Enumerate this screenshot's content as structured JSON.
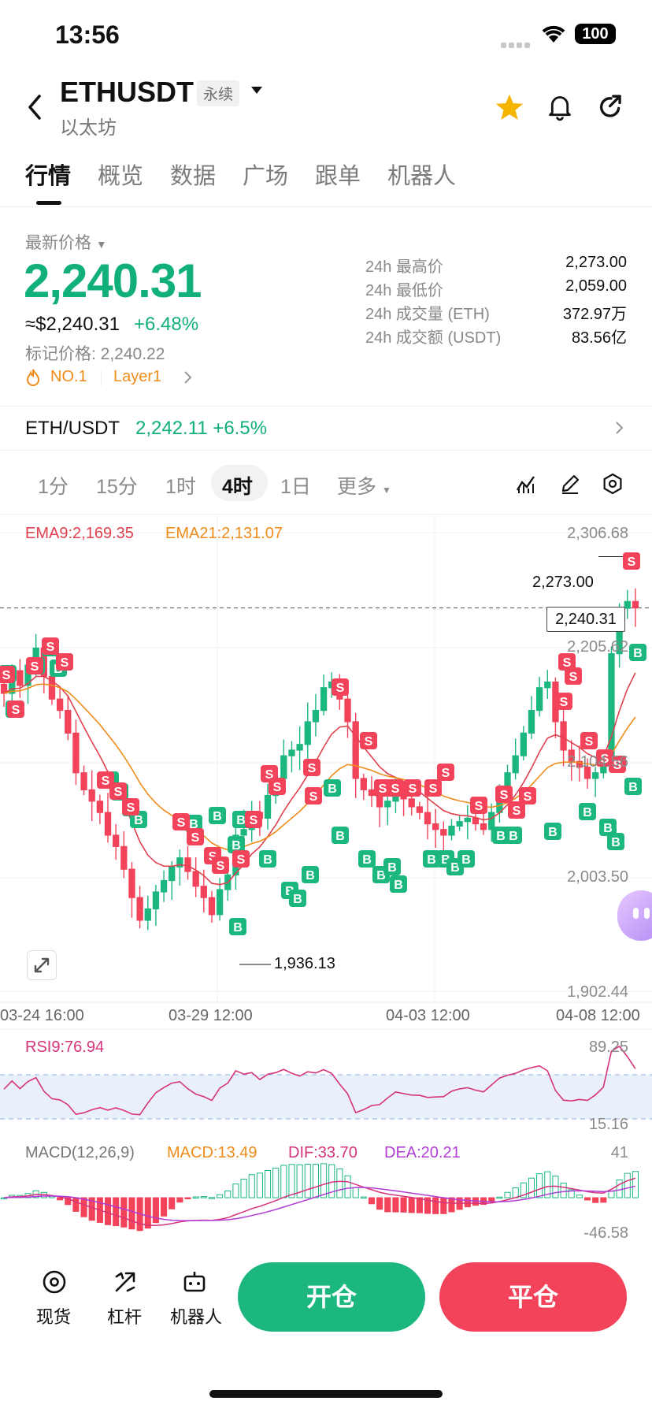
{
  "status_bar": {
    "time": "13:56",
    "battery": "100"
  },
  "header": {
    "symbol": "ETHUSDT",
    "contract_type": "永续",
    "name": "以太坊"
  },
  "tabs": [
    {
      "label": "行情",
      "active": true
    },
    {
      "label": "概览"
    },
    {
      "label": "数据"
    },
    {
      "label": "广场"
    },
    {
      "label": "跟单"
    },
    {
      "label": "机器人"
    }
  ],
  "price": {
    "label": "最新价格",
    "last": "2,240.31",
    "usd": "≈$2,240.31",
    "change": "+6.48%",
    "mark": "标记价格: 2,240.22",
    "tags": [
      "NO.1",
      "Layer1"
    ]
  },
  "stats": [
    {
      "label": "24h 最高价",
      "value": "2,273.00"
    },
    {
      "label": "24h 最低价",
      "value": "2,059.00"
    },
    {
      "label": "24h 成交量 (ETH)",
      "value": "372.97万"
    },
    {
      "label": "24h 成交额 (USDT)",
      "value": "83.56亿"
    }
  ],
  "spot_pair": {
    "pair": "ETH/USDT",
    "price_change": "2,242.11 +6.5%"
  },
  "timeframes": [
    {
      "label": "1分"
    },
    {
      "label": "15分"
    },
    {
      "label": "1时"
    },
    {
      "label": "4时",
      "active": true
    },
    {
      "label": "1日"
    },
    {
      "label": "更多"
    }
  ],
  "chart": {
    "ema9": "EMA9:2,169.35",
    "ema21": "EMA21:2,131.07",
    "y_ticks": [
      "2,306.68",
      "2,205.62",
      "2,104.56",
      "2,003.50",
      "1,902.44"
    ],
    "current_price": "2,240.31",
    "high_marker": "2,273.00",
    "low_marker": "1,936.13",
    "x_ticks": [
      "03-24 16:00",
      "03-29 12:00",
      "04-03 12:00",
      "04-08 12:00"
    ],
    "rsi_label": "RSI9:76.94",
    "rsi_ticks": [
      "89.25",
      "15.16"
    ],
    "macd_label": "MACD(12,26,9)",
    "macd_value": "MACD:13.49",
    "dif": "DIF:33.70",
    "dea": "DEA:20.21",
    "macd_ticks": [
      "41",
      "-46.58"
    ],
    "colors": {
      "up": "#1bb77f",
      "down": "#f2435a",
      "ema9": "#e0404d",
      "ema21": "#f08c1a",
      "rsi": "#d6337b",
      "dea": "#b13cd6"
    }
  },
  "chart_data": {
    "type": "candlestick",
    "timeframe": "4时",
    "ylim": [
      1902.44,
      2306.68
    ],
    "x_ticks": [
      "03-24 16:00",
      "03-29 12:00",
      "04-03 12:00",
      "04-08 12:00"
    ],
    "closes": [
      2165,
      2185,
      2172,
      2190,
      2205,
      2180,
      2160,
      2150,
      2130,
      2095,
      2080,
      2070,
      2060,
      2040,
      2030,
      2010,
      1985,
      1965,
      1975,
      1990,
      2000,
      2012,
      2020,
      2008,
      1995,
      1985,
      1970,
      1992,
      2005,
      2040,
      2045,
      2060,
      2055,
      2075,
      2090,
      2110,
      2115,
      2120,
      2140,
      2150,
      2170,
      2175,
      2160,
      2140,
      2090,
      2080,
      2075,
      2065,
      2070,
      2078,
      2072,
      2065,
      2060,
      2050,
      2045,
      2040,
      2048,
      2052,
      2055,
      2050,
      2045,
      2060,
      2080,
      2095,
      2110,
      2130,
      2150,
      2170,
      2175,
      2140,
      2115,
      2105,
      2100,
      2090,
      2095,
      2110,
      2200,
      2240,
      2246,
      2240.31
    ],
    "signals_note": "B/S markers shown on candles"
  },
  "bottom": {
    "items": [
      {
        "label": "现货"
      },
      {
        "label": "杠杆"
      },
      {
        "label": "机器人"
      }
    ],
    "open": "开仓",
    "close": "平仓"
  }
}
